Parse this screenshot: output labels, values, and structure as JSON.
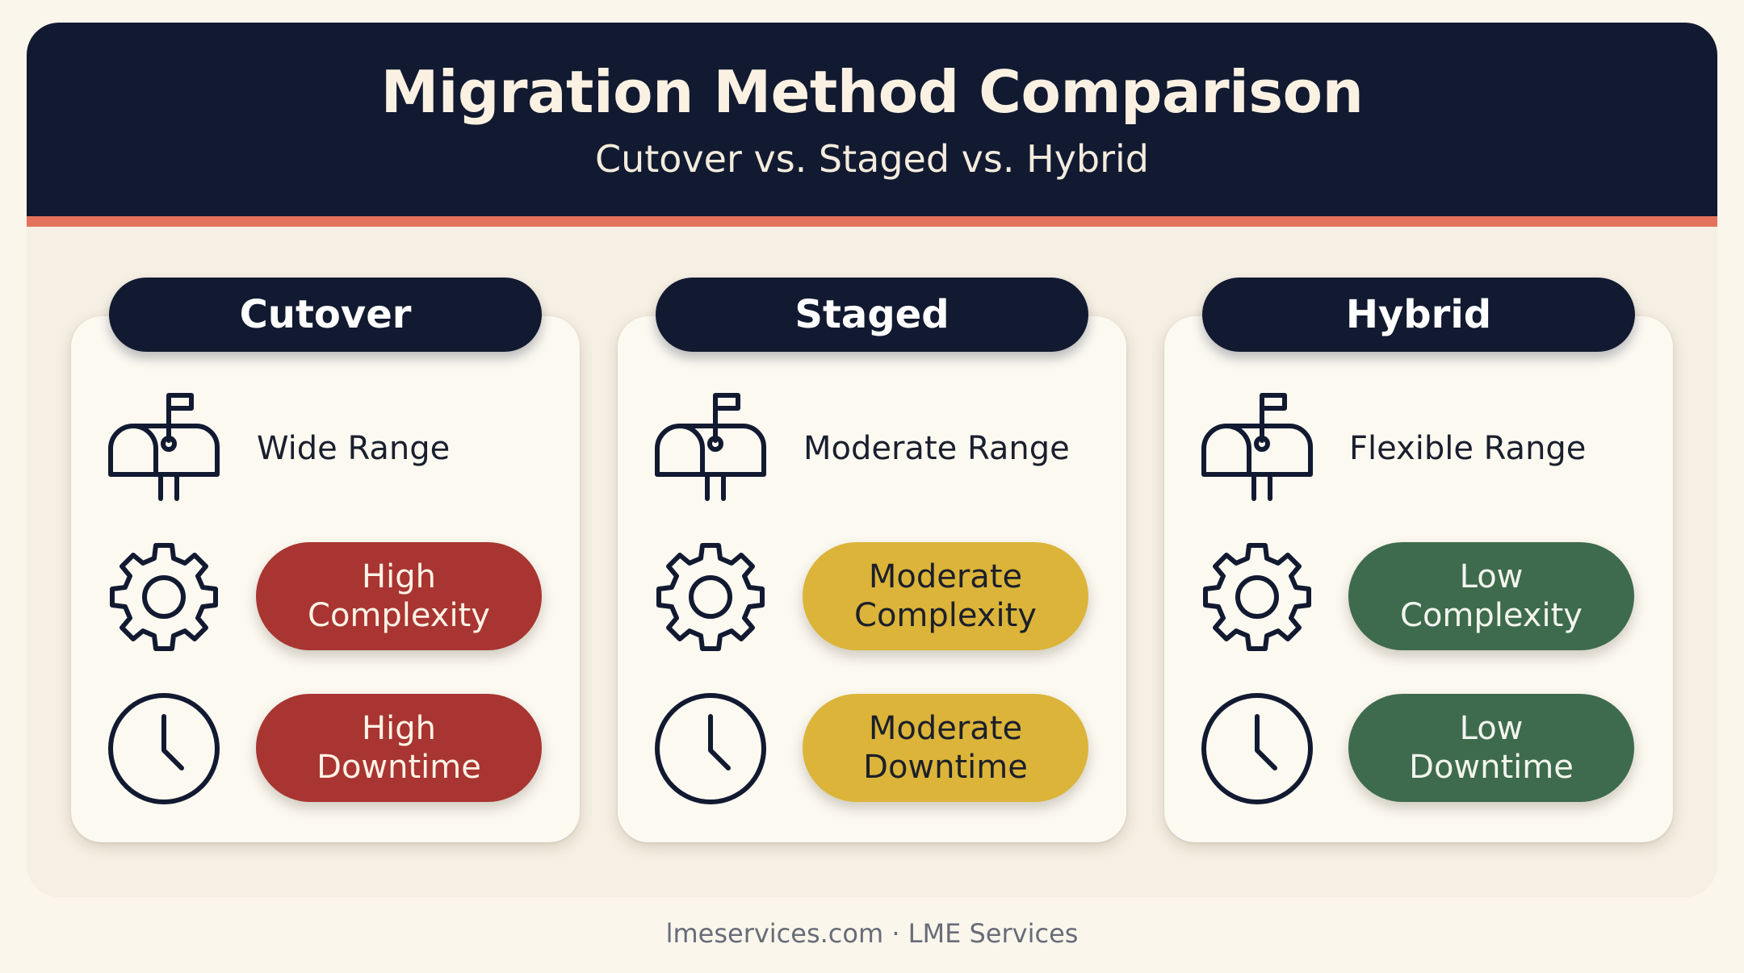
{
  "header": {
    "title": "Migration Method Comparison",
    "subtitle": "Cutover vs. Staged vs. Hybrid"
  },
  "columns": [
    {
      "name": "Cutover",
      "range": "Wide Range",
      "complexity": {
        "level": "high",
        "line1": "High",
        "line2": "Complexity"
      },
      "downtime": {
        "level": "high",
        "line1": "High",
        "line2": "Downtime"
      }
    },
    {
      "name": "Staged",
      "range": "Moderate Range",
      "complexity": {
        "level": "moderate",
        "line1": "Moderate",
        "line2": "Complexity"
      },
      "downtime": {
        "level": "moderate",
        "line1": "Moderate",
        "line2": "Downtime"
      }
    },
    {
      "name": "Hybrid",
      "range": "Flexible Range",
      "complexity": {
        "level": "low",
        "line1": "Low",
        "line2": "Complexity"
      },
      "downtime": {
        "level": "low",
        "line1": "Low",
        "line2": "Downtime"
      }
    }
  ],
  "icons": {
    "range": "mailbox-icon",
    "complexity": "gear-icon",
    "downtime": "clock-icon"
  },
  "colors": {
    "navy": "#121a31",
    "accent": "#e2735a",
    "high": "#a83531",
    "moderate": "#dbb439",
    "low": "#3e6b4d"
  },
  "footer": "lmeservices.com · LME Services"
}
